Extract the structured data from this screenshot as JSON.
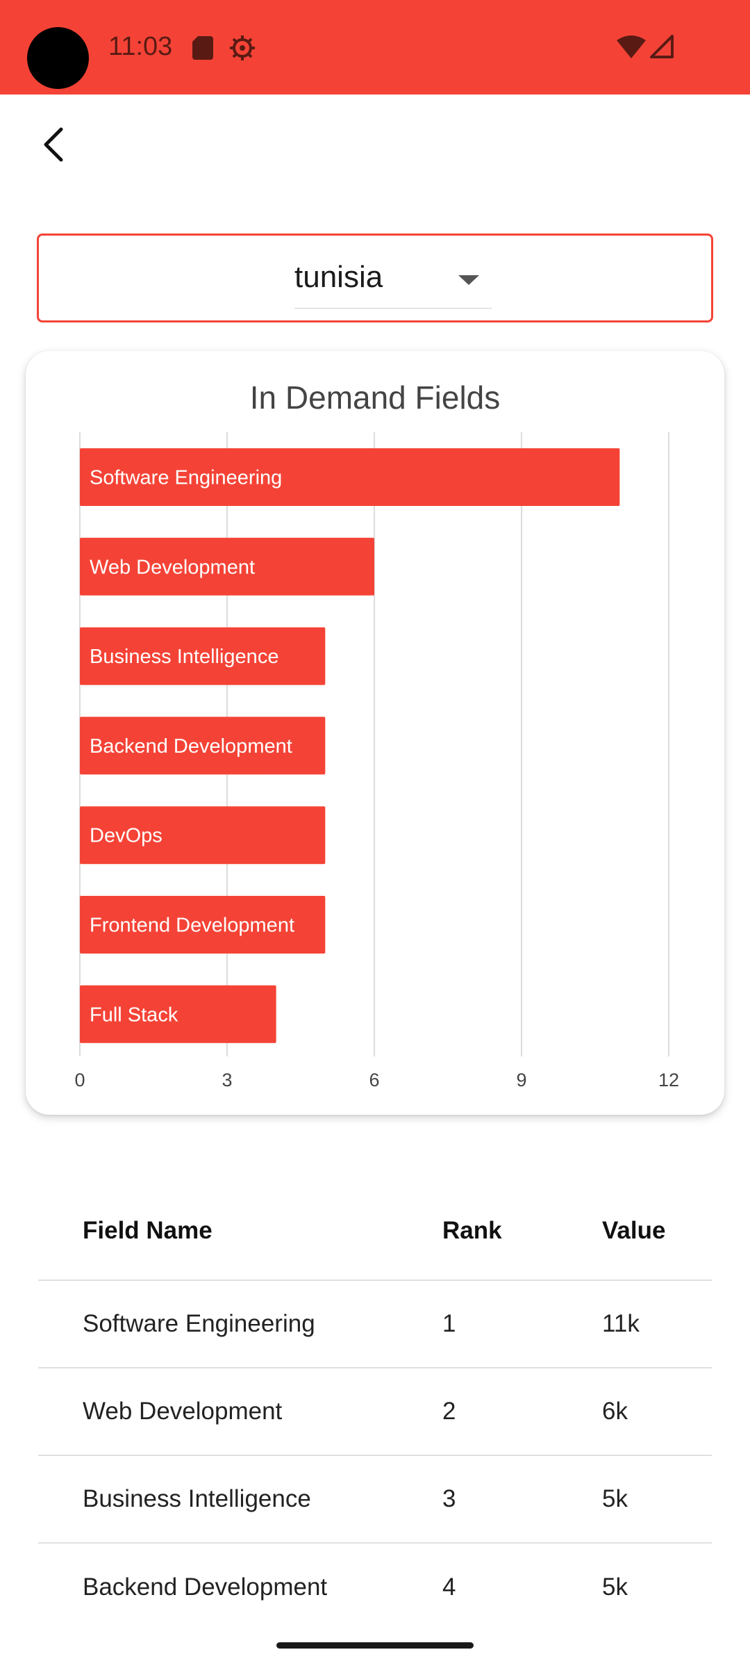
{
  "status_bar": {
    "time": "11:03",
    "icons": [
      "sd-card-icon",
      "gear-icon",
      "wifi-icon",
      "signal-icon"
    ],
    "background": "#f44336"
  },
  "nav": {
    "back_icon": "chevron-left-icon"
  },
  "country_select": {
    "value": "tunisia"
  },
  "chart_data": {
    "type": "bar",
    "orientation": "horizontal",
    "title": "In Demand Fields",
    "categories": [
      "Software Engineering",
      "Web Development",
      "Business Intelligence",
      "Backend Development",
      "DevOps",
      "Frontend Development",
      "Full Stack"
    ],
    "values": [
      11,
      6,
      5,
      5,
      5,
      5,
      4
    ],
    "xlim": [
      0,
      12
    ],
    "xticks": [
      "0",
      "3",
      "6",
      "9",
      "12"
    ],
    "grid": true,
    "bar_color": "#f44336",
    "label_color": "#ffffff"
  },
  "table": {
    "headers": [
      "Field Name",
      "Rank",
      "Value"
    ],
    "rows": [
      [
        "Software Engineering",
        "1",
        "11k"
      ],
      [
        "Web Development",
        "2",
        "6k"
      ],
      [
        "Business Intelligence",
        "3",
        "5k"
      ],
      [
        "Backend Development",
        "4",
        "5k"
      ]
    ]
  }
}
